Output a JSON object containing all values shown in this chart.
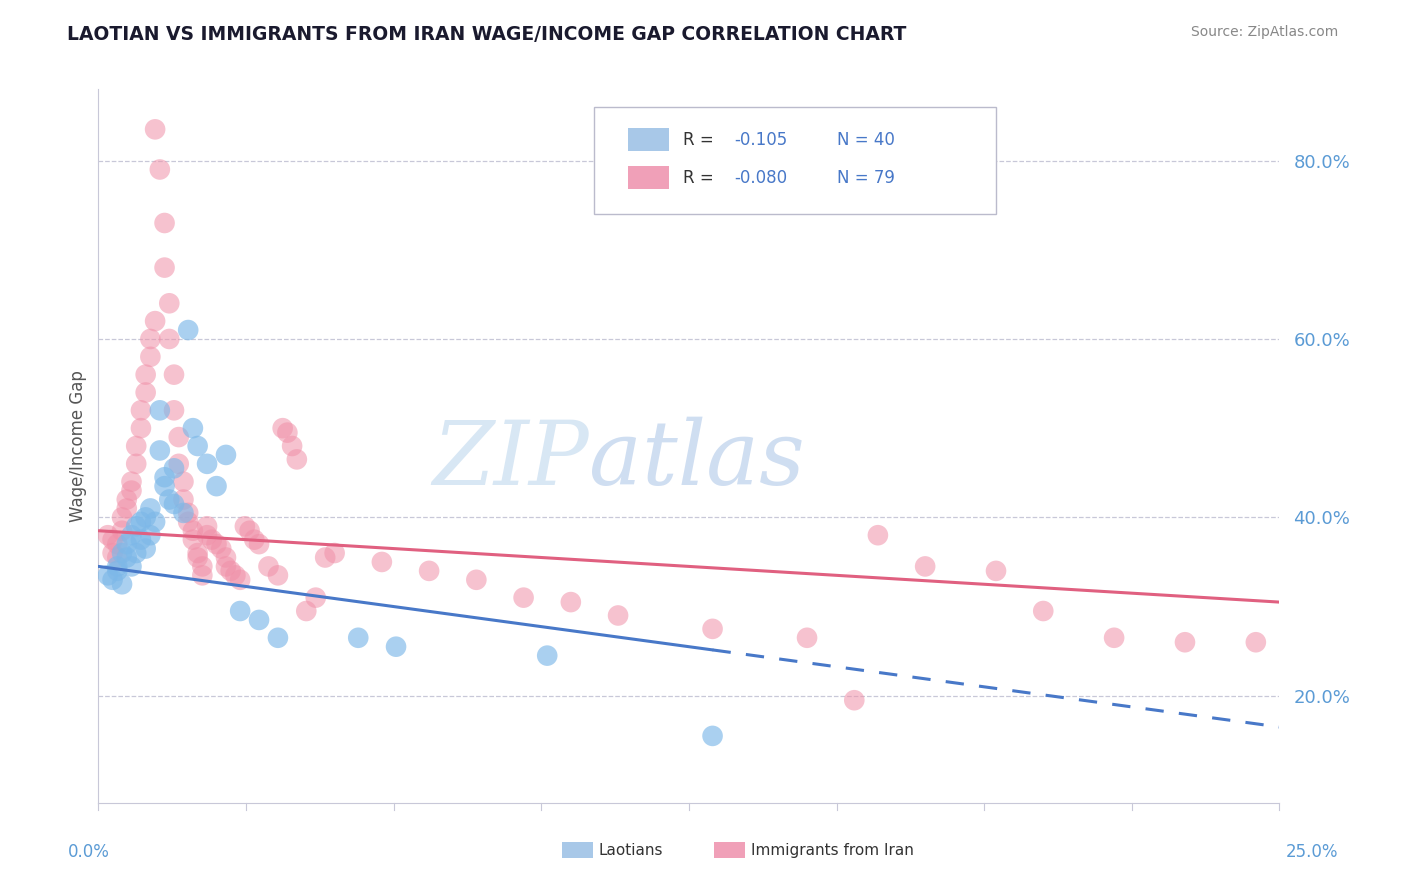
{
  "title": "LAOTIAN VS IMMIGRANTS FROM IRAN WAGE/INCOME GAP CORRELATION CHART",
  "source_text": "Source: ZipAtlas.com",
  "ylabel": "Wage/Income Gap",
  "yaxis_ticks": [
    0.2,
    0.4,
    0.6,
    0.8
  ],
  "yaxis_labels": [
    "20.0%",
    "40.0%",
    "60.0%",
    "80.0%"
  ],
  "xlim": [
    0.0,
    0.25
  ],
  "ylim": [
    0.08,
    0.88
  ],
  "blue_color": "#7db8e8",
  "pink_color": "#f090a8",
  "blue_line_color": "#4878c8",
  "pink_line_color": "#e06080",
  "blue_scatter": [
    [
      0.002,
      0.335
    ],
    [
      0.003,
      0.33
    ],
    [
      0.004,
      0.34
    ],
    [
      0.004,
      0.345
    ],
    [
      0.005,
      0.325
    ],
    [
      0.005,
      0.36
    ],
    [
      0.006,
      0.355
    ],
    [
      0.006,
      0.37
    ],
    [
      0.007,
      0.345
    ],
    [
      0.007,
      0.38
    ],
    [
      0.008,
      0.39
    ],
    [
      0.008,
      0.36
    ],
    [
      0.009,
      0.375
    ],
    [
      0.009,
      0.395
    ],
    [
      0.01,
      0.4
    ],
    [
      0.01,
      0.365
    ],
    [
      0.011,
      0.38
    ],
    [
      0.011,
      0.41
    ],
    [
      0.012,
      0.395
    ],
    [
      0.013,
      0.52
    ],
    [
      0.013,
      0.475
    ],
    [
      0.014,
      0.445
    ],
    [
      0.014,
      0.435
    ],
    [
      0.015,
      0.42
    ],
    [
      0.016,
      0.415
    ],
    [
      0.016,
      0.455
    ],
    [
      0.018,
      0.405
    ],
    [
      0.019,
      0.61
    ],
    [
      0.02,
      0.5
    ],
    [
      0.021,
      0.48
    ],
    [
      0.023,
      0.46
    ],
    [
      0.025,
      0.435
    ],
    [
      0.027,
      0.47
    ],
    [
      0.03,
      0.295
    ],
    [
      0.034,
      0.285
    ],
    [
      0.038,
      0.265
    ],
    [
      0.055,
      0.265
    ],
    [
      0.063,
      0.255
    ],
    [
      0.095,
      0.245
    ],
    [
      0.13,
      0.155
    ]
  ],
  "pink_scatter": [
    [
      0.002,
      0.38
    ],
    [
      0.003,
      0.375
    ],
    [
      0.003,
      0.36
    ],
    [
      0.004,
      0.37
    ],
    [
      0.004,
      0.355
    ],
    [
      0.005,
      0.385
    ],
    [
      0.005,
      0.4
    ],
    [
      0.006,
      0.41
    ],
    [
      0.006,
      0.42
    ],
    [
      0.007,
      0.43
    ],
    [
      0.007,
      0.44
    ],
    [
      0.008,
      0.46
    ],
    [
      0.008,
      0.48
    ],
    [
      0.009,
      0.5
    ],
    [
      0.009,
      0.52
    ],
    [
      0.01,
      0.54
    ],
    [
      0.01,
      0.56
    ],
    [
      0.011,
      0.58
    ],
    [
      0.011,
      0.6
    ],
    [
      0.012,
      0.62
    ],
    [
      0.012,
      0.835
    ],
    [
      0.013,
      0.79
    ],
    [
      0.014,
      0.73
    ],
    [
      0.014,
      0.68
    ],
    [
      0.015,
      0.64
    ],
    [
      0.015,
      0.6
    ],
    [
      0.016,
      0.56
    ],
    [
      0.016,
      0.52
    ],
    [
      0.017,
      0.49
    ],
    [
      0.017,
      0.46
    ],
    [
      0.018,
      0.44
    ],
    [
      0.018,
      0.42
    ],
    [
      0.019,
      0.405
    ],
    [
      0.019,
      0.395
    ],
    [
      0.02,
      0.385
    ],
    [
      0.02,
      0.375
    ],
    [
      0.021,
      0.36
    ],
    [
      0.021,
      0.355
    ],
    [
      0.022,
      0.345
    ],
    [
      0.022,
      0.335
    ],
    [
      0.023,
      0.39
    ],
    [
      0.023,
      0.38
    ],
    [
      0.024,
      0.375
    ],
    [
      0.025,
      0.37
    ],
    [
      0.026,
      0.365
    ],
    [
      0.027,
      0.355
    ],
    [
      0.027,
      0.345
    ],
    [
      0.028,
      0.34
    ],
    [
      0.029,
      0.335
    ],
    [
      0.03,
      0.33
    ],
    [
      0.031,
      0.39
    ],
    [
      0.032,
      0.385
    ],
    [
      0.033,
      0.375
    ],
    [
      0.034,
      0.37
    ],
    [
      0.036,
      0.345
    ],
    [
      0.038,
      0.335
    ],
    [
      0.039,
      0.5
    ],
    [
      0.04,
      0.495
    ],
    [
      0.041,
      0.48
    ],
    [
      0.042,
      0.465
    ],
    [
      0.044,
      0.295
    ],
    [
      0.046,
      0.31
    ],
    [
      0.048,
      0.355
    ],
    [
      0.05,
      0.36
    ],
    [
      0.06,
      0.35
    ],
    [
      0.07,
      0.34
    ],
    [
      0.08,
      0.33
    ],
    [
      0.09,
      0.31
    ],
    [
      0.1,
      0.305
    ],
    [
      0.11,
      0.29
    ],
    [
      0.13,
      0.275
    ],
    [
      0.15,
      0.265
    ],
    [
      0.16,
      0.195
    ],
    [
      0.165,
      0.38
    ],
    [
      0.175,
      0.345
    ],
    [
      0.19,
      0.34
    ],
    [
      0.2,
      0.295
    ],
    [
      0.215,
      0.265
    ],
    [
      0.23,
      0.26
    ],
    [
      0.245,
      0.26
    ]
  ],
  "blue_line": {
    "x0": 0.0,
    "x1": 0.25,
    "y0": 0.345,
    "y1": 0.165,
    "solid_end": 0.13
  },
  "pink_line": {
    "x0": 0.0,
    "x1": 0.25,
    "y0": 0.385,
    "y1": 0.305
  }
}
